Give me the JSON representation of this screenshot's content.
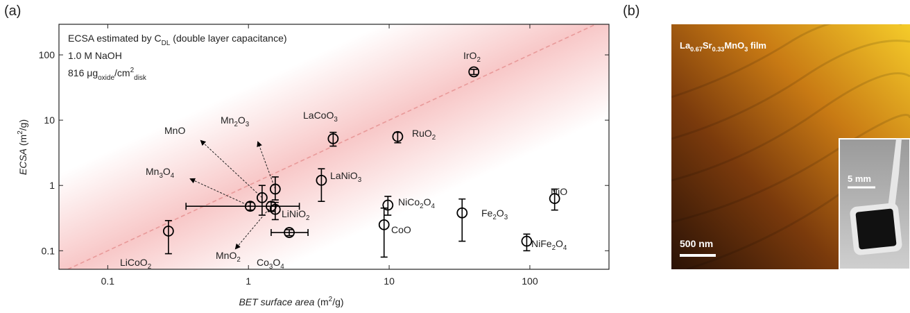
{
  "panel_labels": [
    "(a)",
    "(b)"
  ],
  "chart_data": {
    "type": "scatter",
    "x_label": [
      {
        "text": "BET surface area",
        "style": "italic"
      },
      {
        "text": " (m",
        "style": "normal"
      },
      {
        "text": "2",
        "style": "sup"
      },
      {
        "text": "/g)",
        "style": "normal"
      }
    ],
    "y_label": [
      {
        "text": "ECSA",
        "style": "italic"
      },
      {
        "text": " (m",
        "style": "normal"
      },
      {
        "text": "2",
        "style": "sup"
      },
      {
        "text": "/g)",
        "style": "normal"
      }
    ],
    "notes": [
      [
        {
          "text": "ECSA estimated by C",
          "style": "normal"
        },
        {
          "text": "DL",
          "style": "sub"
        },
        {
          "text": " (double layer capacitance)",
          "style": "normal"
        }
      ],
      [
        {
          "text": "1.0 M NaOH",
          "style": "normal"
        }
      ],
      [
        {
          "text": "816 μg",
          "style": "normal"
        },
        {
          "text": "oxide",
          "style": "sub"
        },
        {
          "text": "/cm",
          "style": "normal"
        },
        {
          "text": "2",
          "style": "sup"
        },
        {
          "text": "disk",
          "style": "sub"
        }
      ]
    ],
    "xscale": "log",
    "yscale": "log",
    "xlim": [
      0.045,
      365
    ],
    "ylim": [
      0.052,
      294
    ],
    "xticks": [
      0.1,
      1,
      10,
      100
    ],
    "yticks": [
      0.1,
      1,
      10,
      100
    ],
    "color": "#000000",
    "reference_line_color": "#e89a9a",
    "labels": [
      "LiCoO2",
      "Mn3O4",
      "MnO",
      "MnO2",
      "Mn2O3",
      "LiNiO2",
      "Co3O4",
      "LaCoO3",
      "LaNiO3",
      "RuO2",
      "IrO2",
      "NiCo2O4",
      "CoO",
      "Fe2O3",
      "NiFe2O4",
      "NiO"
    ],
    "x": [
      0.27,
      1.03,
      1.25,
      1.45,
      1.55,
      1.55,
      1.95,
      4.0,
      3.3,
      11.5,
      40,
      9.8,
      9.2,
      33,
      95,
      150
    ],
    "values": [
      0.2,
      0.48,
      0.65,
      0.48,
      0.88,
      0.43,
      0.19,
      5.2,
      1.2,
      5.6,
      55,
      0.5,
      0.25,
      0.38,
      0.14,
      0.63
    ],
    "y_low": [
      0.09,
      0.42,
      0.35,
      0.4,
      0.6,
      0.3,
      0.17,
      4.0,
      0.57,
      4.5,
      50,
      0.35,
      0.08,
      0.14,
      0.1,
      0.42
    ],
    "y_high": [
      0.29,
      0.55,
      1.0,
      0.56,
      1.35,
      0.55,
      0.21,
      6.5,
      1.8,
      6.5,
      60,
      0.68,
      0.45,
      0.62,
      0.18,
      0.88
    ],
    "x_low": [
      null,
      0.36,
      null,
      null,
      null,
      null,
      1.45,
      null,
      null,
      null,
      null,
      null,
      null,
      null,
      null,
      null
    ],
    "x_high": [
      null,
      2.3,
      null,
      null,
      null,
      null,
      2.65,
      null,
      null,
      null,
      null,
      null,
      null,
      null,
      null,
      null
    ]
  },
  "panel_b": {
    "title": "La0.67Sr0.33MnO3 film",
    "scale_bar": "500 nm",
    "inset_scale_bar": "5 mm"
  }
}
